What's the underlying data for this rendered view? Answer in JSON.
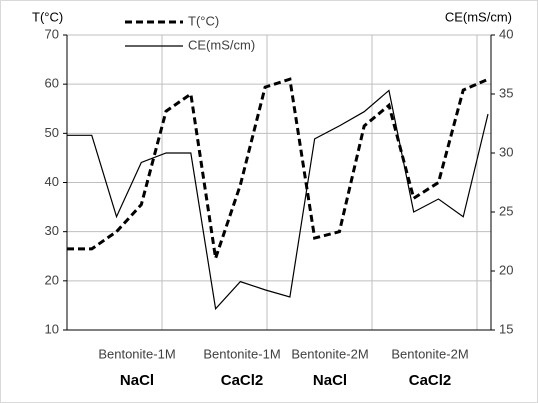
{
  "chart_data": {
    "type": "line",
    "y_label": "T(°C)",
    "y2_label": "CE(mS/cm)",
    "x_groups": [
      {
        "line1": "Bentonite-1M",
        "line2": "NaCl"
      },
      {
        "line1": "Bentonite-1M",
        "line2": "CaCl2"
      },
      {
        "line1": "Bentonite-2M",
        "line2": "NaCl"
      },
      {
        "line1": "Bentonite-2M",
        "line2": "CaCl2"
      }
    ],
    "categories": [
      null,
      null,
      null,
      null,
      null,
      null,
      null,
      null,
      null,
      null,
      null,
      null,
      null,
      null,
      null,
      null,
      null,
      null
    ],
    "series": [
      {
        "name": "T(°C)",
        "color": "#000000",
        "dashed": true,
        "values": [
          26.5,
          26.5,
          30,
          35.5,
          54.5,
          58,
          24.6,
          39.5,
          59.4,
          61,
          28.7,
          30,
          51.5,
          55.7,
          36.8,
          40,
          58.8,
          61
        ]
      },
      {
        "name": "CE(mS/cm)",
        "color": "#000000",
        "dashed": false,
        "axis": "y2",
        "values": [
          31.5,
          31.5,
          24.6,
          29.2,
          30,
          30,
          16.8,
          19.1,
          18.4,
          17.8,
          31.2,
          32.3,
          33.5,
          35.3,
          25,
          26.1,
          24.6,
          33.3
        ]
      }
    ],
    "ylim": [
      10,
      70
    ],
    "yticks": [
      10,
      20,
      30,
      40,
      50,
      60,
      70
    ],
    "y2lim": [
      15,
      40
    ],
    "y2ticks": [
      15,
      20,
      25,
      30,
      35,
      40
    ],
    "grid": true
  }
}
